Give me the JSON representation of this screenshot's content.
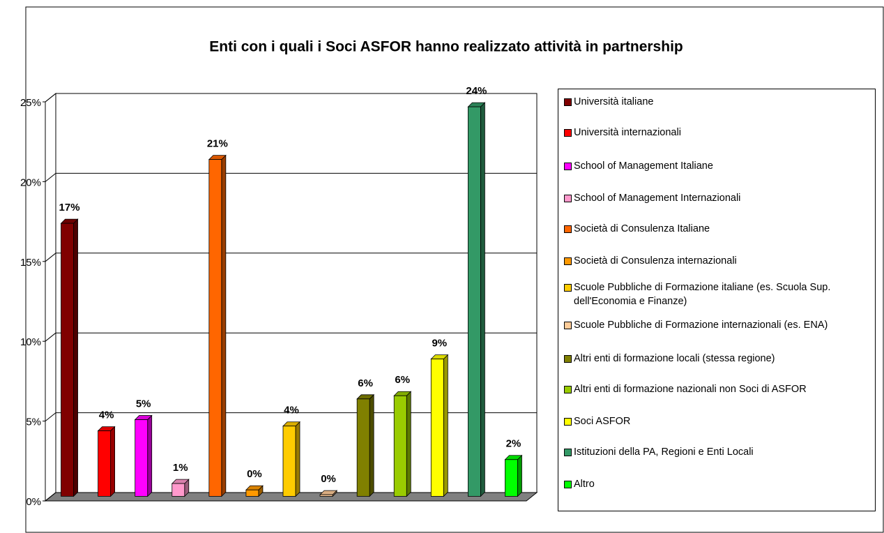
{
  "chart_data": {
    "type": "bar3d",
    "title": "Enti con i quali i Soci ASFOR hanno realizzato attività  in partnership",
    "categories": [
      "Università italiane",
      "Università internazionali",
      "School of Management Italiane",
      "School of Management Internazionali",
      "Società di Consulenza Italiane",
      "Società di Consulenza internazionali",
      "Scuole Pubbliche di Formazione italiane (es. Scuola Sup. dell'Economia e Finanze)",
      "Scuole Pubbliche di Formazione internazionali (es. ENA)",
      "Altri enti di formazione locali (stessa regione)",
      "Altri enti di formazione nazionali non Soci di ASFOR",
      "Soci ASFOR",
      "Istituzioni della PA, Regioni e Enti Locali",
      "Altro"
    ],
    "values": [
      17.1,
      4.1,
      4.8,
      0.8,
      21.1,
      0.4,
      4.4,
      0.1,
      6.1,
      6.3,
      8.6,
      24.4,
      2.3
    ],
    "value_labels": [
      "17%",
      "4%",
      "5%",
      "1%",
      "21%",
      "0%",
      "4%",
      "0%",
      "6%",
      "6%",
      "9%",
      "24%",
      "2%"
    ],
    "colors": [
      "#800000",
      "#ff0000",
      "#ff00ff",
      "#ff99cc",
      "#ff6600",
      "#ff9900",
      "#ffcc00",
      "#ffcc99",
      "#808000",
      "#99cc00",
      "#ffff00",
      "#339966",
      "#00ff00"
    ],
    "ylim": [
      0,
      25
    ],
    "yticks": [
      {
        "value": 0,
        "label": "0%"
      },
      {
        "value": 5,
        "label": "5%"
      },
      {
        "value": 10,
        "label": "10%"
      },
      {
        "value": 15,
        "label": "15%"
      },
      {
        "value": 20,
        "label": "20%"
      },
      {
        "value": 25,
        "label": "25%"
      }
    ],
    "grid": true,
    "legend": "right"
  }
}
